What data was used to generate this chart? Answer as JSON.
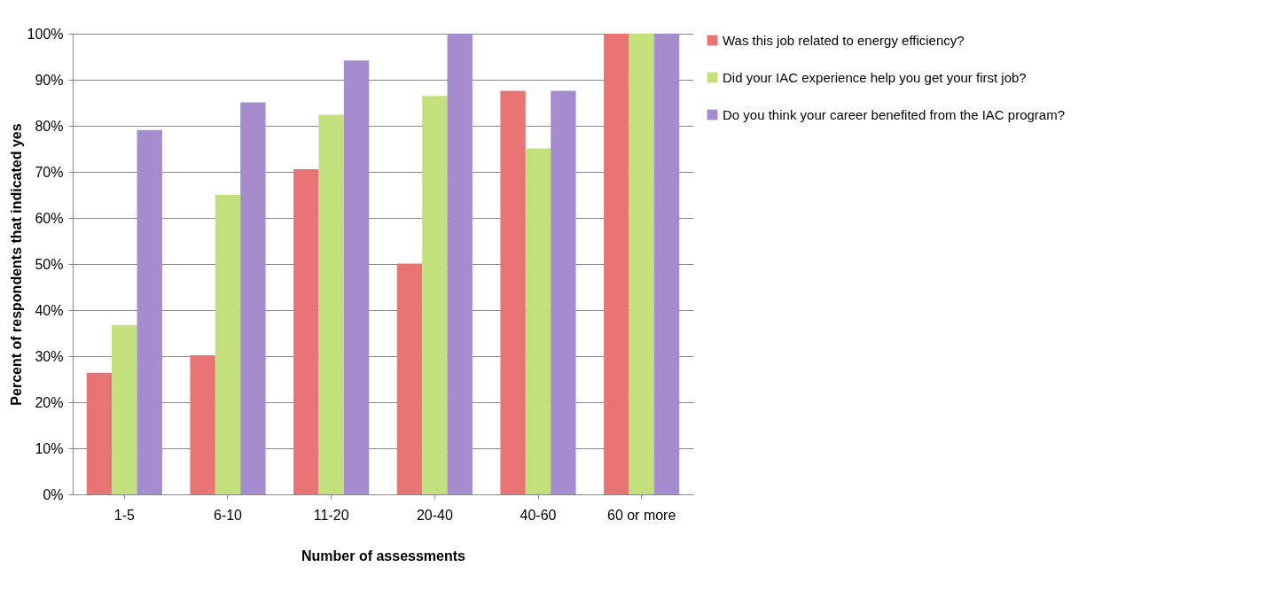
{
  "chart_data": {
    "type": "bar",
    "xlabel": "Number of assessments",
    "ylabel": "Percent of respondents that indicated yes",
    "categories": [
      "1-5",
      "6-10",
      "11-20",
      "20-40",
      "40-60",
      "60 or more"
    ],
    "series": [
      {
        "name": "Was this job related to energy efficiency?",
        "color": "#e87474",
        "values": [
          26.4,
          30.2,
          70.6,
          50.1,
          87.6,
          100
        ]
      },
      {
        "name": "Did your IAC experience help you get your first job?",
        "color": "#c2e07c",
        "values": [
          36.8,
          65.0,
          82.4,
          86.5,
          75.1,
          100
        ]
      },
      {
        "name": "Do you think your career benefited from the IAC program?",
        "color": "#a48cce",
        "values": [
          79.1,
          85.1,
          94.2,
          100,
          87.6,
          100
        ]
      }
    ],
    "ylim": [
      0,
      100
    ],
    "yticks": [
      {
        "value": 0,
        "label": "0%"
      },
      {
        "value": 10,
        "label": "10%"
      },
      {
        "value": 20,
        "label": "20%"
      },
      {
        "value": 30,
        "label": "30%"
      },
      {
        "value": 40,
        "label": "40%"
      },
      {
        "value": 50,
        "label": "50%"
      },
      {
        "value": 60,
        "label": "60%"
      },
      {
        "value": 70,
        "label": "70%"
      },
      {
        "value": 80,
        "label": "80%"
      },
      {
        "value": 90,
        "label": "90%"
      },
      {
        "value": 100,
        "label": "100%"
      }
    ],
    "grid": "y",
    "legend": "right"
  }
}
